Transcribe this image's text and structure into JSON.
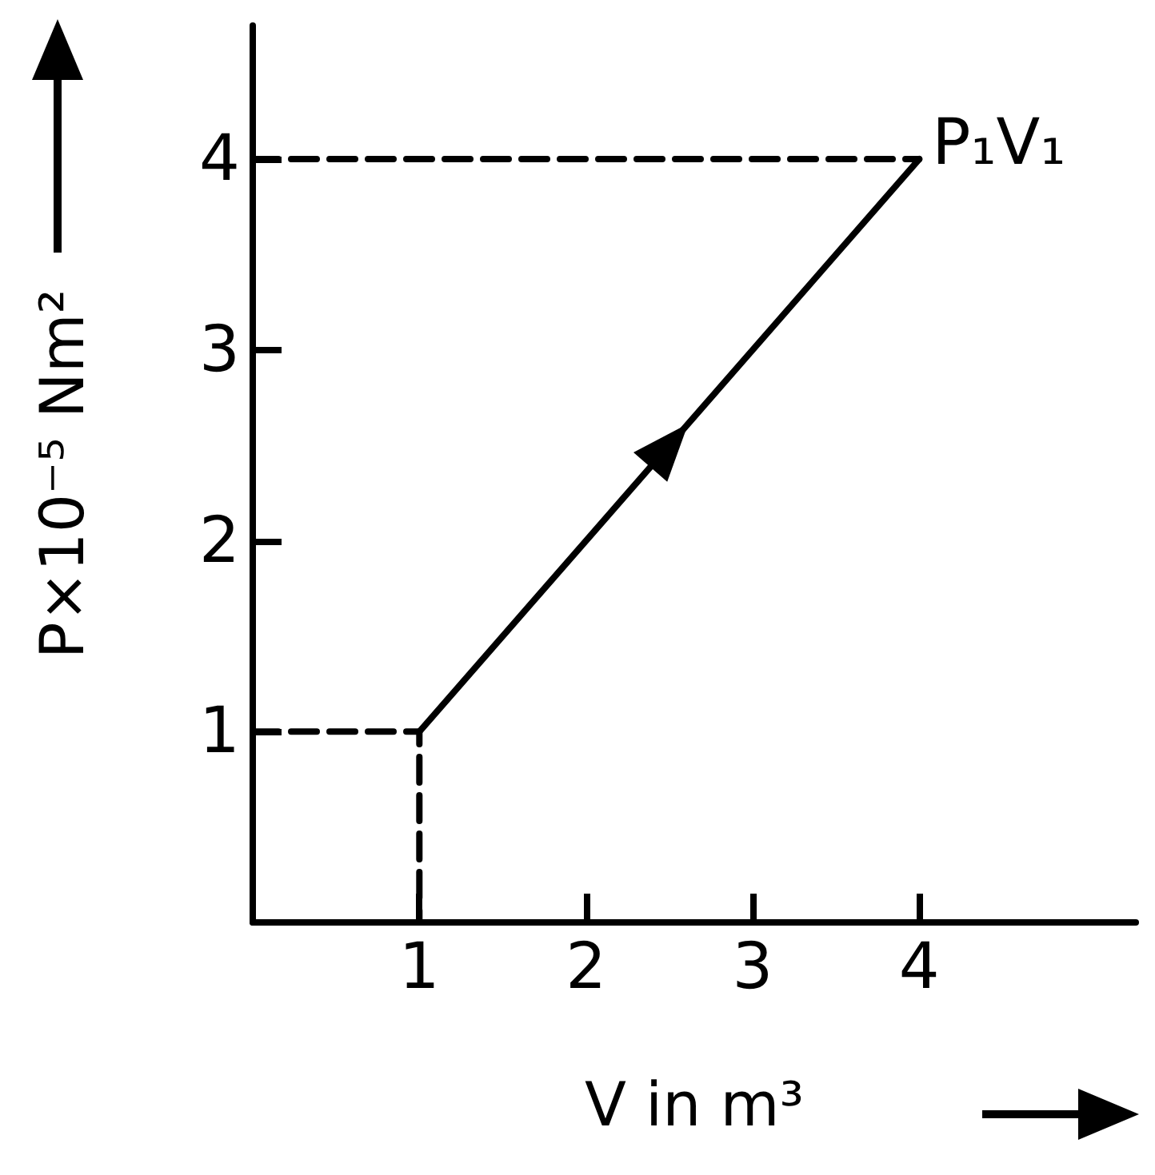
{
  "chart_data": {
    "type": "line",
    "xlabel": "V in m³",
    "ylabel": "P×10⁻⁵ Nm²",
    "xlim": [
      0,
      5.3
    ],
    "ylim": [
      0,
      4.7
    ],
    "xticks": [
      1,
      2,
      3,
      4
    ],
    "yticks": [
      1,
      2,
      3,
      4
    ],
    "grid": false,
    "marker": "none",
    "series": [
      {
        "color": "#000000",
        "x": [
          1,
          4
        ],
        "values": [
          1,
          4
        ],
        "line_style": "solid"
      },
      {
        "color": "#000000",
        "x": [
          0,
          4
        ],
        "values": [
          4,
          4
        ],
        "line_style": "dashed"
      },
      {
        "color": "#000000",
        "x": [
          0,
          1,
          1
        ],
        "values": [
          1,
          1,
          0
        ],
        "line_style": "dashed"
      }
    ],
    "annotations": [
      {
        "text": "P₁V₁",
        "x": 4,
        "y": 4
      }
    ]
  }
}
